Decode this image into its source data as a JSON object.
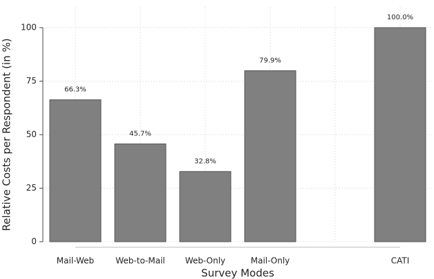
{
  "chart_data": {
    "type": "bar",
    "x_label": "Survey Modes",
    "y_label": "Relative Costs per Respondent (in %)",
    "categories": [
      "Mail-Web",
      "Web-to-Mail",
      "Web-Only",
      "Mail-Only",
      null,
      "CATI"
    ],
    "values": [
      66.3,
      45.7,
      32.8,
      79.9,
      null,
      100
    ],
    "value_labels": [
      "66.3%",
      "45.7%",
      "32.8%",
      "79.9%",
      null,
      "100.0%"
    ],
    "color": "#808080",
    "ylim": [
      0,
      100
    ],
    "yticks": [
      0,
      25,
      50,
      75,
      100
    ],
    "grid": true
  }
}
